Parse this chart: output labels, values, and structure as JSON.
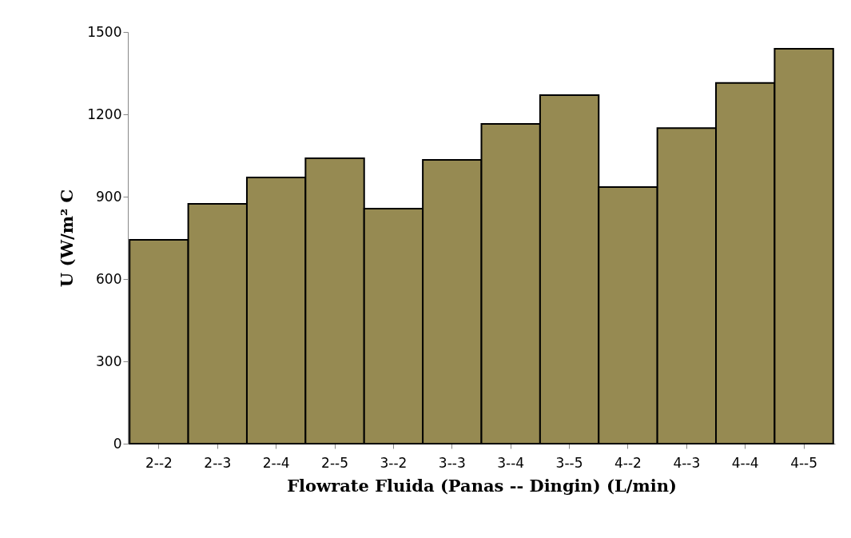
{
  "chart_data": {
    "type": "bar",
    "xlabel": "Flowrate Fluida (Panas -- Dingin) (L/min)",
    "ylabel": "U (W/m² C",
    "categories": [
      "2--2",
      "2--3",
      "2--4",
      "2--5",
      "3--2",
      "3--3",
      "3--4",
      "3--5",
      "4--2",
      "4--3",
      "4--4",
      "4--5"
    ],
    "values": [
      743,
      874,
      970,
      1040,
      856,
      1034,
      1165,
      1270,
      935,
      1150,
      1314,
      1439
    ],
    "color": "#968a52",
    "ylim": [
      0,
      1500
    ],
    "yticks": [
      0,
      300,
      600,
      900,
      1200,
      1500
    ],
    "grid": false
  }
}
